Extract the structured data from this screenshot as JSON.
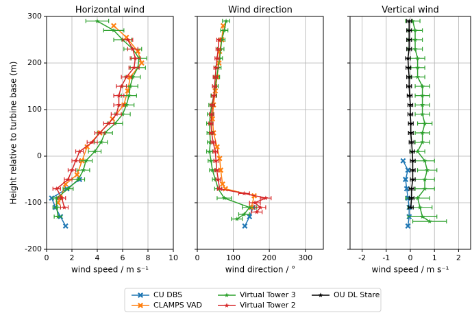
{
  "chart_data": [
    {
      "type": "line",
      "title": "Horizontal wind",
      "xlabel": "wind speed / m s⁻¹",
      "ylabel": "Height relative to turbine base (m)",
      "xlim": [
        0,
        10
      ],
      "xticks": [
        0,
        2,
        4,
        6,
        8,
        10
      ],
      "ylim": [
        -200,
        300
      ],
      "yticks": [
        -200,
        -100,
        0,
        100,
        200,
        300
      ],
      "grid": true,
      "series": [
        {
          "name": "CU DBS",
          "color": "#1f77b4",
          "marker": "x",
          "x": [
            2.6,
            1.6,
            0.4,
            0.7,
            1.1,
            1.5
          ],
          "y": [
            -50,
            -70,
            -90,
            -110,
            -130,
            -150
          ]
        },
        {
          "name": "CLAMPS VAD",
          "color": "#ff7f0e",
          "marker": "x",
          "x": [
            5.3,
            6.3,
            7.2,
            7.5,
            6.6,
            6.4,
            6.1,
            5.2,
            4.2,
            3.2,
            2.8,
            2.4,
            1.5,
            1.1,
            0.9
          ],
          "y": [
            280,
            255,
            225,
            200,
            170,
            140,
            110,
            80,
            50,
            20,
            -10,
            -40,
            -60,
            -90,
            -100
          ]
        },
        {
          "name": "Virtual Tower 3",
          "color": "#2ca02c",
          "marker": "star",
          "x": [
            4.0,
            5.3,
            6.0,
            6.8,
            7.3,
            7.2,
            6.8,
            6.6,
            6.5,
            6.3,
            6.0,
            5.4,
            4.6,
            4.3,
            3.8,
            3.1,
            2.9,
            2.5,
            1.7,
            0.8,
            0.8,
            0.9
          ],
          "xerr": [
            0.9,
            0.8,
            0.7,
            0.7,
            0.6,
            0.6,
            0.6,
            0.6,
            0.6,
            0.6,
            0.6,
            0.6,
            0.6,
            0.5,
            0.5,
            0.5,
            0.5,
            0.5,
            0.4,
            0.3,
            0.3,
            0.3
          ],
          "y": [
            290,
            270,
            250,
            230,
            210,
            190,
            170,
            150,
            130,
            110,
            90,
            70,
            50,
            30,
            10,
            -10,
            -30,
            -50,
            -70,
            -90,
            -110,
            -130
          ]
        },
        {
          "name": "Virtual Tower 2",
          "color": "#d62728",
          "marker": "star",
          "x": [
            6.4,
            6.8,
            7.0,
            6.9,
            6.3,
            5.9,
            5.7,
            5.7,
            5.5,
            4.9,
            4.2,
            3.6,
            2.6,
            2.3,
            2.0,
            1.7,
            0.8,
            1.2,
            1.4
          ],
          "xerr": [
            0.4,
            0.4,
            0.4,
            0.4,
            0.4,
            0.4,
            0.4,
            0.4,
            0.4,
            0.4,
            0.4,
            0.4,
            0.3,
            0.3,
            0.3,
            0.3,
            0.3,
            0.3,
            0.3
          ],
          "y": [
            250,
            230,
            210,
            190,
            170,
            150,
            130,
            110,
            90,
            70,
            50,
            30,
            10,
            -10,
            -30,
            -50,
            -70,
            -90,
            -110
          ]
        }
      ]
    },
    {
      "type": "line",
      "title": "Wind direction",
      "xlabel": "wind direction / °",
      "xlim": [
        0,
        350
      ],
      "xticks": [
        0,
        100,
        200,
        300
      ],
      "grid": true,
      "series": [
        {
          "color": "#1f77b4",
          "marker": "x",
          "x": [
            155,
            145,
            132
          ],
          "y": [
            -110,
            -130,
            -150
          ]
        },
        {
          "color": "#ff7f0e",
          "marker": "x",
          "x": [
            72,
            68,
            62,
            60,
            55,
            50,
            45,
            42,
            45,
            55,
            62,
            65,
            70,
            78,
            158,
            150
          ],
          "y": [
            280,
            250,
            225,
            200,
            170,
            140,
            110,
            80,
            50,
            20,
            -5,
            -30,
            -60,
            -70,
            -85,
            -110
          ]
        },
        {
          "color": "#2ca02c",
          "marker": "star",
          "x": [
            80,
            75,
            68,
            65,
            62,
            58,
            54,
            50,
            46,
            40,
            36,
            34,
            35,
            36,
            34,
            38,
            42,
            50,
            58,
            75,
            145,
            130,
            110
          ],
          "xerr": [
            10,
            10,
            9,
            9,
            8,
            8,
            8,
            8,
            8,
            8,
            8,
            8,
            8,
            8,
            8,
            8,
            8,
            8,
            10,
            20,
            20,
            15,
            15
          ],
          "y": [
            290,
            270,
            250,
            230,
            210,
            190,
            170,
            150,
            130,
            110,
            90,
            70,
            50,
            30,
            10,
            -10,
            -30,
            -50,
            -70,
            -90,
            -110,
            -125,
            -135
          ]
        },
        {
          "color": "#d62728",
          "marker": "star",
          "x": [
            60,
            58,
            55,
            52,
            50,
            48,
            46,
            42,
            40,
            38,
            40,
            44,
            50,
            52,
            54,
            58,
            62,
            130,
            190,
            160,
            175,
            165
          ],
          "xerr": [
            6,
            6,
            6,
            6,
            6,
            6,
            6,
            6,
            6,
            6,
            6,
            6,
            6,
            6,
            6,
            6,
            6,
            15,
            15,
            15,
            15,
            15
          ],
          "y": [
            250,
            230,
            210,
            190,
            170,
            150,
            130,
            110,
            90,
            70,
            50,
            30,
            10,
            -10,
            -30,
            -50,
            -70,
            -80,
            -90,
            -100,
            -110,
            -120
          ]
        }
      ]
    },
    {
      "type": "line",
      "title": "Vertical wind",
      "xlabel": "wind speed / m s⁻¹",
      "xlim": [
        -2.5,
        2.5
      ],
      "xticks": [
        -2,
        -1,
        0,
        1,
        2
      ],
      "grid": true,
      "series": [
        {
          "color": "#1f77b4",
          "marker": "x",
          "x": [
            -0.3,
            -0.1,
            -0.2,
            -0.15,
            -0.1,
            -0.05,
            -0.05,
            -0.1
          ],
          "y": [
            -10,
            -30,
            -50,
            -70,
            -90,
            -110,
            -130,
            -150
          ]
        },
        {
          "color": "#2ca02c",
          "marker": "star",
          "x": [
            0.1,
            0.2,
            0.2,
            0.2,
            0.3,
            0.3,
            0.3,
            0.5,
            0.5,
            0.5,
            0.5,
            0.6,
            0.5,
            0.5,
            0.3,
            0.6,
            0.7,
            0.6,
            0.6,
            0.3,
            0.4,
            0.5,
            0.8
          ],
          "xerr": [
            0.3,
            0.3,
            0.3,
            0.3,
            0.3,
            0.3,
            0.3,
            0.3,
            0.3,
            0.3,
            0.3,
            0.3,
            0.3,
            0.3,
            0.3,
            0.4,
            0.4,
            0.4,
            0.4,
            0.5,
            0.5,
            0.6,
            0.7
          ],
          "y": [
            290,
            270,
            250,
            230,
            210,
            190,
            170,
            150,
            130,
            110,
            90,
            70,
            50,
            30,
            10,
            -10,
            -30,
            -50,
            -70,
            -90,
            -110,
            -130,
            -140
          ]
        },
        {
          "color": "#000000",
          "marker": "star",
          "x": [
            -0.05,
            -0.05,
            -0.05,
            -0.05,
            -0.1,
            -0.08,
            -0.05,
            -0.05,
            -0.03,
            0,
            0,
            0.02,
            0.02,
            0.05,
            0.08,
            0.1,
            0.1,
            0.1,
            0.05,
            0.05,
            0.02
          ],
          "xerr": [
            0.1,
            0.1,
            0.1,
            0.1,
            0.1,
            0.1,
            0.1,
            0.1,
            0.1,
            0.1,
            0.1,
            0.1,
            0.1,
            0.1,
            0.1,
            0.1,
            0.1,
            0.1,
            0.1,
            0.1,
            0.1
          ],
          "y": [
            290,
            270,
            250,
            230,
            210,
            190,
            170,
            150,
            130,
            110,
            90,
            70,
            50,
            30,
            10,
            -10,
            -30,
            -50,
            -70,
            -90,
            -110
          ]
        }
      ]
    }
  ],
  "legend": [
    {
      "name": "CU DBS",
      "color": "#1f77b4",
      "marker": "x"
    },
    {
      "name": "CLAMPS VAD",
      "color": "#ff7f0e",
      "marker": "x"
    },
    {
      "name": "Virtual Tower 3",
      "color": "#2ca02c",
      "marker": "star"
    },
    {
      "name": "Virtual Tower 2",
      "color": "#d62728",
      "marker": "star"
    },
    {
      "name": "OU DL Stare",
      "color": "#000000",
      "marker": "star"
    }
  ]
}
